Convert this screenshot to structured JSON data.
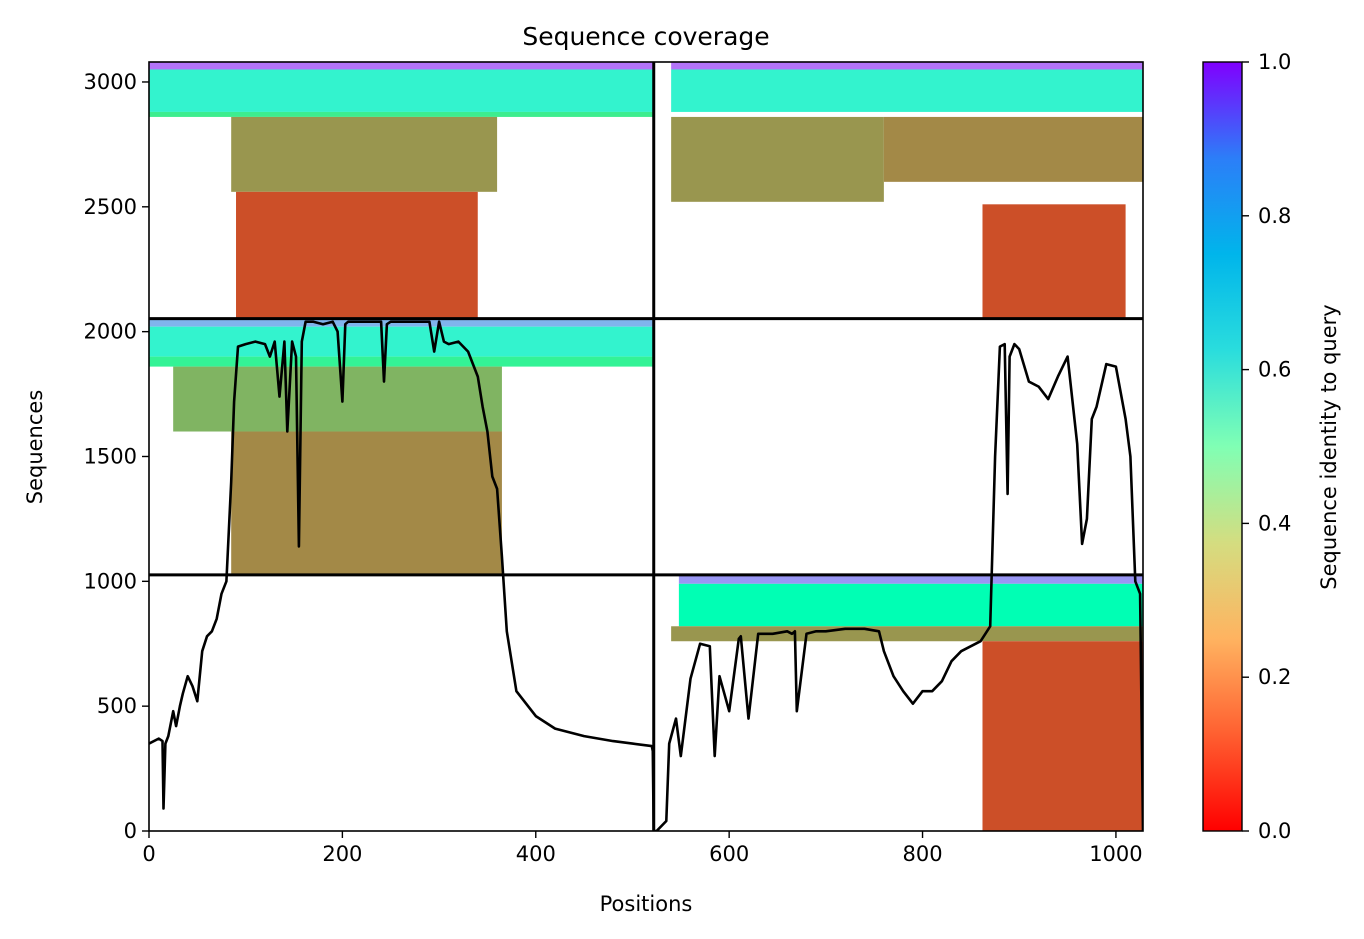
{
  "chart_data": {
    "type": "heatmap",
    "title": "Sequence coverage",
    "xlabel": "Positions",
    "ylabel": "Sequences",
    "colorbar_label": "Sequence identity to query",
    "colormap": "rainbow_r",
    "xlim": [
      0,
      1028
    ],
    "ylim": [
      0,
      3080
    ],
    "clim": [
      0,
      1
    ],
    "x_ticks": [
      0,
      200,
      400,
      600,
      800,
      1000
    ],
    "y_ticks": [
      0,
      500,
      1000,
      1500,
      2000,
      2500,
      3000
    ],
    "colorbar_ticks": [
      "0.0",
      "0.2",
      "0.4",
      "0.6",
      "0.8",
      "1.0"
    ],
    "domain_boundary_x": 522,
    "row_boundaries_y": [
      1026,
      2052
    ],
    "blocks": [
      {
        "x0": 0,
        "x1": 522,
        "y0": 2052,
        "y1": 3080,
        "bands": [
          {
            "y0": 3050,
            "y1": 3080,
            "x0": 0,
            "x1": 522,
            "identity": 0.85
          },
          {
            "y0": 2880,
            "y1": 3050,
            "x0": 0,
            "x1": 522,
            "identity": 0.6
          },
          {
            "y0": 2860,
            "y1": 2880,
            "x0": 0,
            "x1": 522,
            "identity": 0.38
          },
          {
            "y0": 2560,
            "y1": 2860,
            "x0": 85,
            "x1": 360,
            "identity": 0.2
          },
          {
            "y0": 2052,
            "y1": 2560,
            "x0": 90,
            "x1": 340,
            "identity": 0.1
          }
        ]
      },
      {
        "x0": 522,
        "x1": 1028,
        "y0": 2052,
        "y1": 3080,
        "bands": [
          {
            "y0": 3050,
            "y1": 3080,
            "x0": 540,
            "x1": 1028,
            "identity": 0.85
          },
          {
            "y0": 2880,
            "y1": 3050,
            "x0": 540,
            "x1": 1028,
            "identity": 0.6
          },
          {
            "y0": 2520,
            "y1": 2860,
            "x0": 540,
            "x1": 760,
            "identity": 0.2
          },
          {
            "y0": 2600,
            "y1": 2860,
            "x0": 760,
            "x1": 1028,
            "identity": 0.18
          },
          {
            "y0": 2052,
            "y1": 2510,
            "x0": 862,
            "x1": 1010,
            "identity": 0.1
          }
        ]
      },
      {
        "x0": 0,
        "x1": 522,
        "y0": 1026,
        "y1": 2052,
        "bands": [
          {
            "y0": 2020,
            "y1": 2052,
            "x0": 0,
            "x1": 522,
            "identity": 0.75
          },
          {
            "y0": 1900,
            "y1": 2020,
            "x0": 0,
            "x1": 522,
            "identity": 0.6
          },
          {
            "y0": 1860,
            "y1": 1900,
            "x0": 0,
            "x1": 522,
            "identity": 0.4
          },
          {
            "y0": 1600,
            "y1": 1860,
            "x0": 25,
            "x1": 365,
            "identity": 0.25
          },
          {
            "y0": 1026,
            "y1": 1600,
            "x0": 85,
            "x1": 365,
            "identity": 0.18
          }
        ]
      },
      {
        "x0": 522,
        "x1": 1028,
        "y0": 0,
        "y1": 1026,
        "bands": [
          {
            "y0": 990,
            "y1": 1026,
            "x0": 548,
            "x1": 1028,
            "identity": 0.8
          },
          {
            "y0": 820,
            "y1": 990,
            "x0": 548,
            "x1": 1028,
            "identity": 0.5
          },
          {
            "y0": 760,
            "y1": 820,
            "x0": 540,
            "x1": 1028,
            "identity": 0.2
          },
          {
            "y0": 0,
            "y1": 760,
            "x0": 862,
            "x1": 1028,
            "identity": 0.1
          }
        ]
      }
    ],
    "coverage_line": {
      "x": [
        0,
        10,
        14,
        15,
        17,
        20,
        25,
        28,
        32,
        35,
        40,
        45,
        50,
        55,
        60,
        65,
        70,
        75,
        80,
        85,
        88,
        92,
        100,
        110,
        120,
        125,
        130,
        135,
        140,
        143,
        148,
        152,
        155,
        158,
        162,
        170,
        180,
        190,
        195,
        200,
        203,
        206,
        210,
        220,
        230,
        240,
        243,
        246,
        250,
        260,
        270,
        280,
        290,
        295,
        300,
        305,
        310,
        320,
        330,
        340,
        345,
        350,
        355,
        360,
        365,
        370,
        380,
        400,
        420,
        450,
        480,
        500,
        520,
        521,
        522,
        525,
        535,
        538,
        545,
        550,
        560,
        570,
        580,
        585,
        590,
        600,
        610,
        612,
        620,
        630,
        640,
        645,
        660,
        665,
        668,
        670,
        680,
        690,
        700,
        720,
        740,
        755,
        760,
        770,
        780,
        790,
        800,
        810,
        820,
        830,
        840,
        850,
        860,
        870,
        875,
        880,
        885,
        888,
        890,
        895,
        900,
        910,
        920,
        930,
        940,
        950,
        960,
        965,
        970,
        975,
        980,
        990,
        1000,
        1010,
        1015,
        1020,
        1025,
        1028
      ],
      "y": [
        350,
        370,
        360,
        90,
        350,
        380,
        480,
        420,
        500,
        550,
        620,
        580,
        520,
        720,
        780,
        800,
        850,
        950,
        1000,
        1400,
        1720,
        1940,
        1950,
        1960,
        1950,
        1900,
        1960,
        1740,
        1960,
        1600,
        1960,
        1900,
        1140,
        1960,
        2040,
        2040,
        2030,
        2040,
        2000,
        1720,
        2030,
        2040,
        2040,
        2040,
        2040,
        2040,
        1800,
        2030,
        2040,
        2040,
        2040,
        2040,
        2040,
        1920,
        2040,
        1960,
        1950,
        1960,
        1920,
        1820,
        1700,
        1600,
        1420,
        1370,
        1100,
        800,
        560,
        460,
        410,
        380,
        360,
        350,
        340,
        320,
        0,
        0,
        40,
        350,
        450,
        300,
        610,
        750,
        740,
        300,
        620,
        480,
        770,
        780,
        450,
        790,
        790,
        790,
        800,
        790,
        800,
        480,
        790,
        800,
        800,
        810,
        810,
        800,
        720,
        620,
        560,
        510,
        560,
        560,
        600,
        680,
        720,
        740,
        760,
        820,
        1500,
        1940,
        1950,
        1350,
        1900,
        1950,
        1930,
        1800,
        1780,
        1730,
        1820,
        1900,
        1550,
        1150,
        1250,
        1650,
        1700,
        1870,
        1860,
        1650,
        1500,
        1000,
        950,
        0
      ]
    }
  }
}
